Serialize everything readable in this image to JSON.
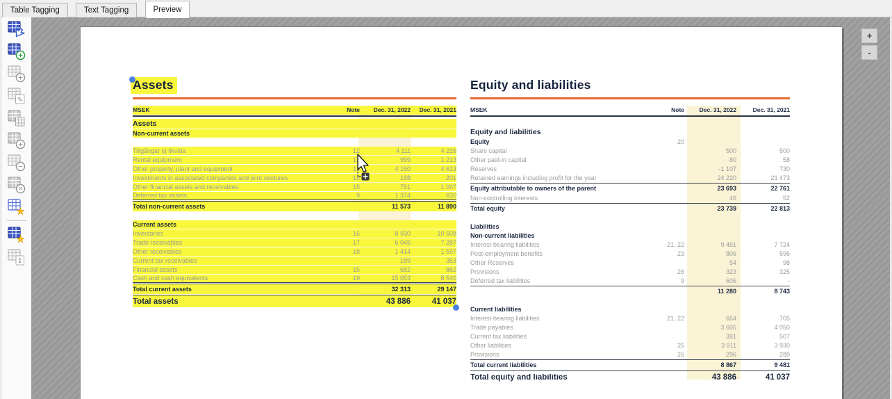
{
  "tabs": [
    {
      "label": "Table Tagging",
      "active": false
    },
    {
      "label": "Text Tagging",
      "active": false
    },
    {
      "label": "Preview",
      "active": true
    }
  ],
  "sidebar": {
    "items": [
      {
        "name": "select-table",
        "style": "blue-solid",
        "badge": "cursor",
        "enabled": true
      },
      {
        "name": "new-table",
        "style": "blue-solid",
        "badge": "plus-green",
        "enabled": true
      },
      {
        "name": "insert-table",
        "style": "gray-lines",
        "badge": "plus",
        "enabled": false
      },
      {
        "name": "edit-table",
        "style": "gray-lines",
        "badge": "pencil",
        "enabled": false
      },
      {
        "name": "split-table",
        "style": "gray-solid",
        "badge": "grid",
        "enabled": false
      },
      {
        "name": "add-table-part",
        "style": "gray-solid",
        "badge": "plus",
        "enabled": false
      },
      {
        "name": "remove-table-part",
        "style": "gray-lines",
        "badge": "minus",
        "enabled": false
      },
      {
        "name": "delete-table",
        "style": "gray-solid",
        "badge": "x",
        "enabled": false
      },
      {
        "name": "star-table",
        "style": "blue-lines",
        "badge": "star",
        "enabled": true
      },
      {
        "name": "star-table-active",
        "style": "blue-solid",
        "badge": "star",
        "enabled": true,
        "separator_before": true
      },
      {
        "name": "resize-table",
        "style": "gray-lines",
        "badge": "varrows",
        "enabled": false
      }
    ]
  },
  "zoom_controls": {
    "zoom_in": "+",
    "zoom_out": "-"
  },
  "colors": {
    "highlight": "#f8f73b",
    "column_band": "#faf3d6",
    "accent_rule": "#e8672c",
    "selection_handle": "#4d80e6"
  },
  "document": {
    "tables": [
      {
        "id": "assets",
        "title": "Assets",
        "highlighted": true,
        "selection_handles": [
          "top-left",
          "bottom-right"
        ],
        "columns": [
          "MSEK",
          "Note",
          "Dec. 31, 2022",
          "Dec. 31, 2021"
        ],
        "rows": [
          {
            "type": "seclg",
            "label": "Assets",
            "note": "",
            "v2022": "",
            "v2021": ""
          },
          {
            "type": "sec",
            "label": "Non-current assets",
            "note": "",
            "v2022": "",
            "v2021": ""
          },
          {
            "type": "spacer"
          },
          {
            "type": "data",
            "label": "Tillgångar ej likvida",
            "note": "12",
            "v2022": "4 111",
            "v2021": "4 226"
          },
          {
            "type": "data",
            "label": "Rental equipment",
            "note": "13",
            "v2022": "999",
            "v2021": "1 213"
          },
          {
            "type": "data",
            "label": "Other property, plant and equipment",
            "note": "13",
            "v2022": "4 150",
            "v2021": "4 613"
          },
          {
            "type": "data",
            "label": "Investments in associated companies and joint ventures",
            "note": "14",
            "v2022": "188",
            "v2021": "201"
          },
          {
            "type": "data",
            "label": "Other financial assets and receivables",
            "note": "15",
            "v2022": "751",
            "v2021": "1 007"
          },
          {
            "type": "data",
            "label": "Deferred tax assets",
            "note": "9",
            "v2022": "1 374",
            "v2021": "630"
          },
          {
            "type": "total",
            "label": "Total non-current assets",
            "note": "",
            "v2022": "11 573",
            "v2021": "11 890"
          },
          {
            "type": "spacer"
          },
          {
            "type": "sec",
            "label": "Current assets",
            "note": "",
            "v2022": "",
            "v2021": ""
          },
          {
            "type": "data",
            "label": "Inventories",
            "note": "16",
            "v2022": "8 930",
            "v2021": "10 508"
          },
          {
            "type": "data",
            "label": "Trade receivables",
            "note": "17",
            "v2022": "6 045",
            "v2021": "7 287"
          },
          {
            "type": "data",
            "label": "Other receivables",
            "note": "18",
            "v2022": "1 414",
            "v2021": "1 597"
          },
          {
            "type": "data",
            "label": "Current tax receivables",
            "note": "",
            "v2022": "189",
            "v2021": "353"
          },
          {
            "type": "data",
            "label": "Financial assets",
            "note": "15",
            "v2022": "682",
            "v2021": "862"
          },
          {
            "type": "data",
            "label": "Cash and cash equivalents",
            "note": "19",
            "v2022": "15 053",
            "v2021": "8 540"
          },
          {
            "type": "total",
            "label": "Total current assets",
            "note": "",
            "v2022": "32 313",
            "v2021": "29 147"
          },
          {
            "type": "grand",
            "label": "Total assets",
            "note": "",
            "v2022": "43 886",
            "v2021": "41 037"
          }
        ]
      },
      {
        "id": "equity",
        "title": "Equity and liabilities",
        "highlighted": false,
        "selection_handles": [],
        "columns": [
          "MSEK",
          "Note",
          "Dec. 31, 2022",
          "Dec. 31, 2021"
        ],
        "rows": [
          {
            "type": "spacer"
          },
          {
            "type": "seclg",
            "label": "Equity and liabilities",
            "note": "",
            "v2022": "",
            "v2021": ""
          },
          {
            "type": "secnote",
            "label": "Equity",
            "note": "20",
            "v2022": "",
            "v2021": ""
          },
          {
            "type": "data",
            "label": "Share capital",
            "note": "",
            "v2022": "500",
            "v2021": "500"
          },
          {
            "type": "data",
            "label": "Other paid-in capital",
            "note": "",
            "v2022": "80",
            "v2021": "58"
          },
          {
            "type": "data",
            "label": "Reserves",
            "note": "",
            "v2022": "-1 107",
            "v2021": "730"
          },
          {
            "type": "data",
            "label": "Retained earnings including profit for the year",
            "note": "",
            "v2022": "24 220",
            "v2021": "21 473"
          },
          {
            "type": "total",
            "label": "Equity attributable to owners of the parent",
            "note": "",
            "v2022": "23 693",
            "v2021": "22 761"
          },
          {
            "type": "data",
            "label": "Non-controlling interests",
            "note": "",
            "v2022": "46",
            "v2021": "52"
          },
          {
            "type": "total",
            "label": "Total equity",
            "note": "",
            "v2022": "23 739",
            "v2021": "22 813"
          },
          {
            "type": "spacer"
          },
          {
            "type": "sec",
            "label": "Liabilities",
            "note": "",
            "v2022": "",
            "v2021": ""
          },
          {
            "type": "sec",
            "label": "Non-current liabilities",
            "note": "",
            "v2022": "",
            "v2021": ""
          },
          {
            "type": "data",
            "label": "Interest-bearing liabilities",
            "note": "21, 22",
            "v2022": "9 491",
            "v2021": "7 724"
          },
          {
            "type": "data",
            "label": "Post-employment benefits",
            "note": "23",
            "v2022": "806",
            "v2021": "596"
          },
          {
            "type": "data",
            "label": "Other Reserves",
            "note": "",
            "v2022": "54",
            "v2021": "98"
          },
          {
            "type": "data",
            "label": "Provisions",
            "note": "26",
            "v2022": "323",
            "v2021": "325"
          },
          {
            "type": "data",
            "label": "Deferred tax liabilities",
            "note": "9",
            "v2022": "606",
            "v2021": "-"
          },
          {
            "type": "total",
            "label": "",
            "note": "",
            "v2022": "11 280",
            "v2021": "8 743"
          },
          {
            "type": "spacer"
          },
          {
            "type": "sec",
            "label": "Current liabilities",
            "note": "",
            "v2022": "",
            "v2021": ""
          },
          {
            "type": "data",
            "label": "Interest-bearing liabilities",
            "note": "21, 22",
            "v2022": "664",
            "v2021": "705"
          },
          {
            "type": "data",
            "label": "Trade payables",
            "note": "",
            "v2022": "3 605",
            "v2021": "4 050"
          },
          {
            "type": "data",
            "label": "Current tax liabilities",
            "note": "",
            "v2022": "391",
            "v2021": "507"
          },
          {
            "type": "data",
            "label": "Other liabilities",
            "note": "25",
            "v2022": "3 911",
            "v2021": "3 930"
          },
          {
            "type": "data",
            "label": "Provisions",
            "note": "26",
            "v2022": "296",
            "v2021": "289"
          },
          {
            "type": "total",
            "label": "Total current liabilities",
            "note": "",
            "v2022": "8 867",
            "v2021": "9 481"
          },
          {
            "type": "grand",
            "label": "Total equity and liabilities",
            "note": "",
            "v2022": "43 886",
            "v2021": "41 037"
          }
        ]
      }
    ]
  }
}
